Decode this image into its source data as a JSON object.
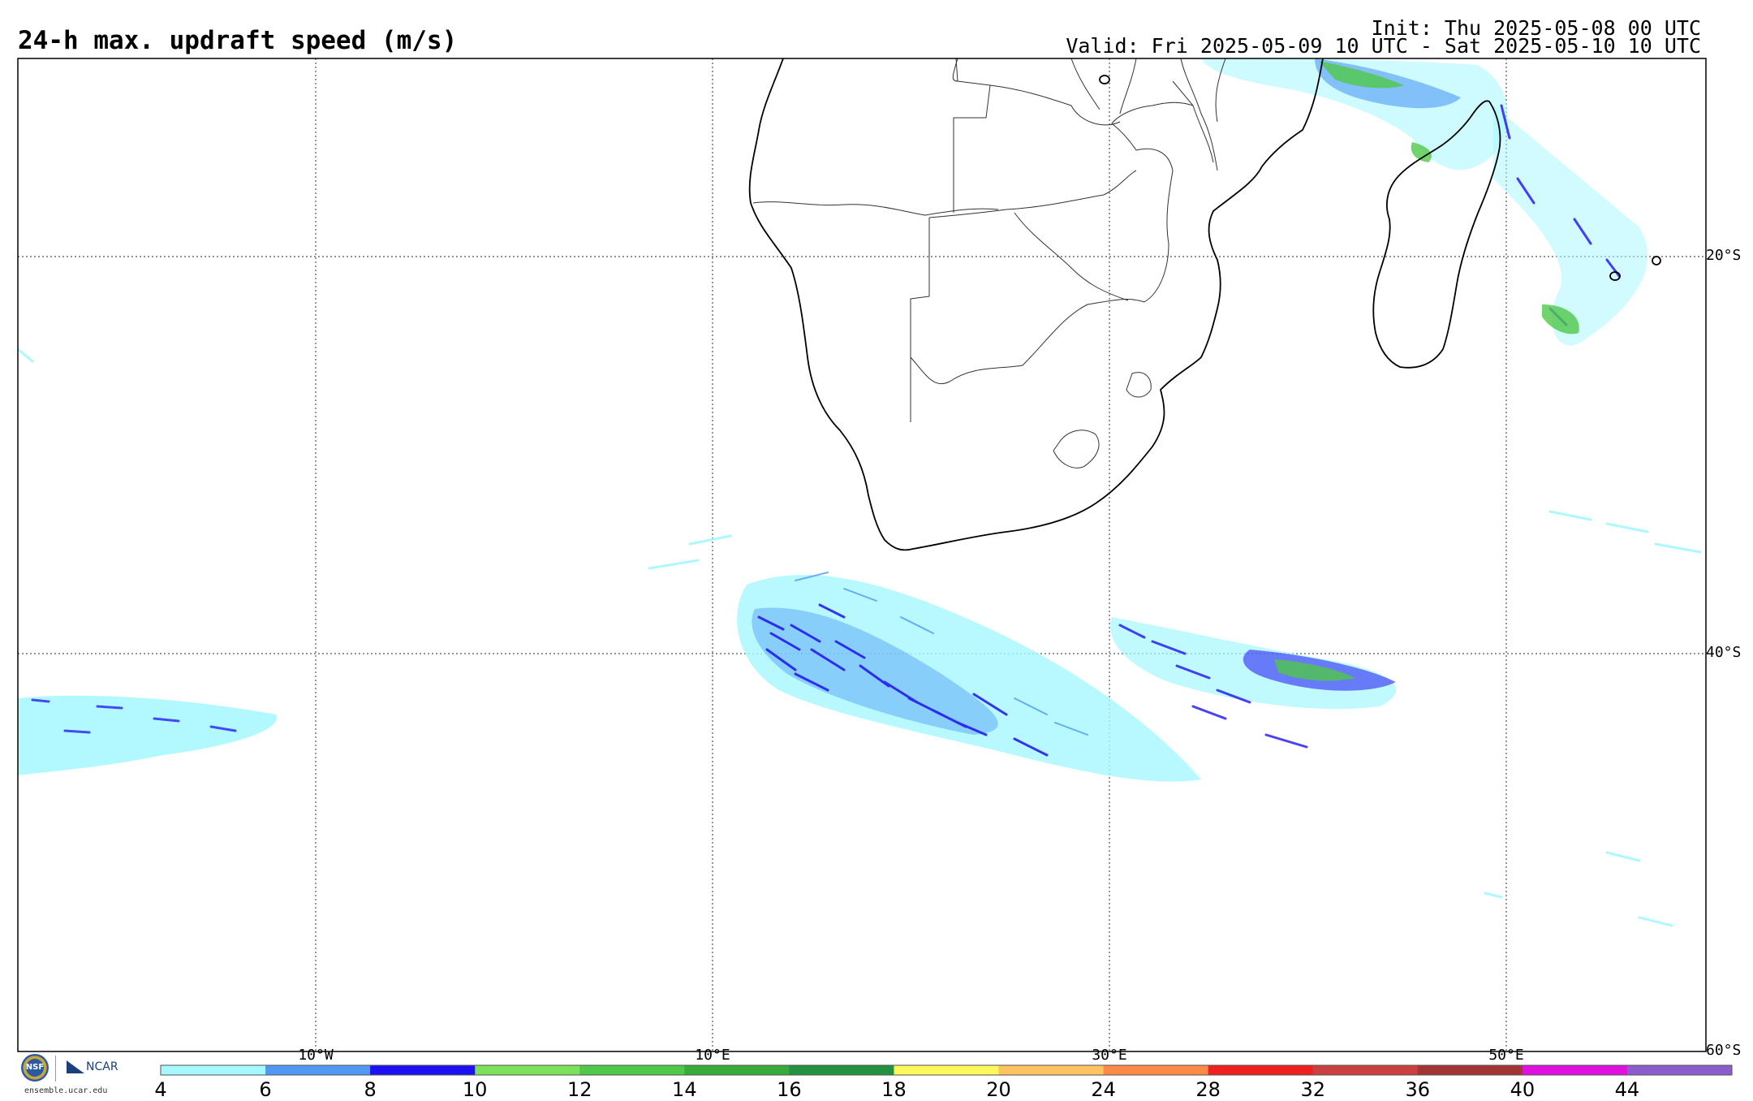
{
  "header": {
    "title": "24-h max. updraft speed (m/s)",
    "init": "Init: Thu 2025-05-08 00 UTC",
    "valid": "Valid: Fri 2025-05-09 10 UTC - Sat 2025-05-10 10 UTC"
  },
  "latitude_labels": [
    "20°S",
    "40°S",
    "60°S"
  ],
  "longitude_labels": [
    "10°W",
    "10°E",
    "30°E",
    "50°E"
  ],
  "colorbar": {
    "tick_labels": [
      "4",
      "6",
      "8",
      "10",
      "12",
      "14",
      "16",
      "18",
      "20",
      "24",
      "28",
      "32",
      "36",
      "40",
      "44"
    ],
    "colors": [
      "#a5f8ff",
      "#4f99f5",
      "#1d11f2",
      "#7de05a",
      "#50c848",
      "#37ab3a",
      "#229140",
      "#fff85d",
      "#ffc461",
      "#ff8a48",
      "#f02020",
      "#cc4040",
      "#a33434",
      "#e010e0",
      "#8c5ccc"
    ]
  },
  "logos": {
    "nsf_text": "NSF",
    "ncar_text": "NCAR",
    "url": "ensemble.ucar.edu"
  }
}
